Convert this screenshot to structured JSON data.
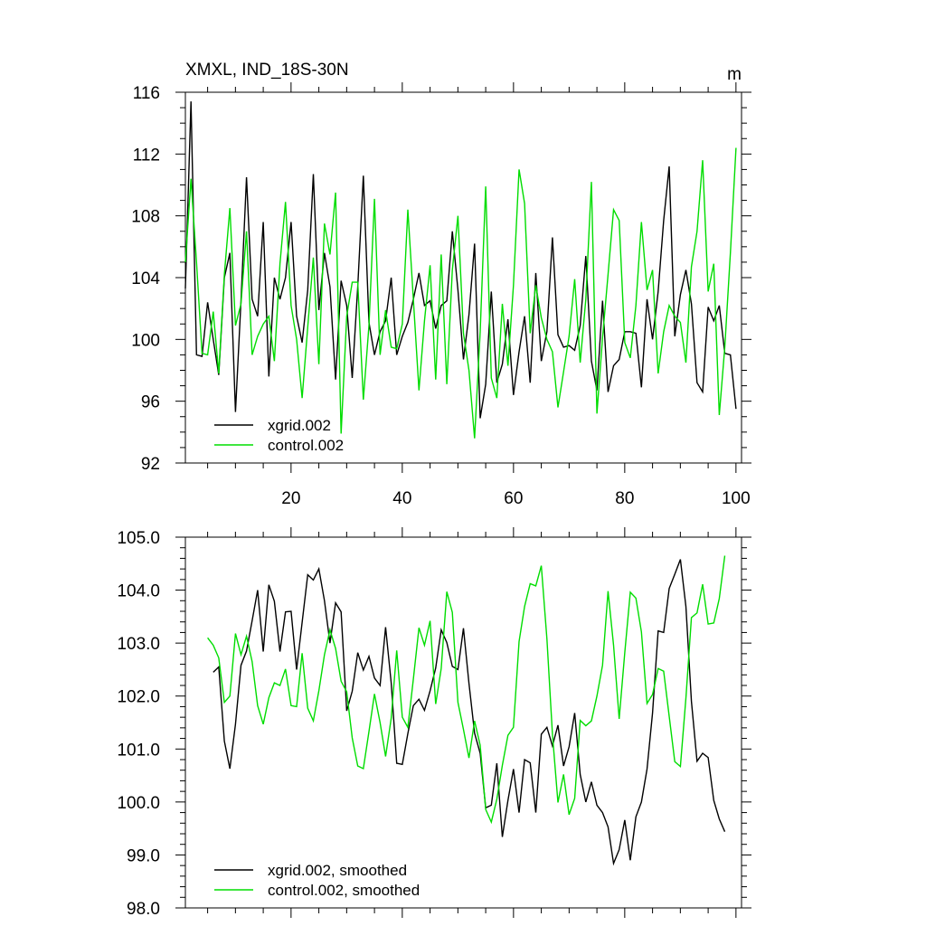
{
  "chart_data": [
    {
      "type": "line",
      "title": "XMXL, IND_18S-30N",
      "units": "m",
      "xlabel": "",
      "ylabel": "",
      "xlim": [
        1,
        101
      ],
      "ylim": [
        92,
        116
      ],
      "xticks": [
        20,
        40,
        60,
        80,
        100
      ],
      "yticks": [
        92,
        96,
        100,
        104,
        108,
        112,
        116
      ],
      "legend_position": "bottom-left",
      "series": [
        {
          "name": "xgrid.002",
          "color": "#000000",
          "x_start": 1,
          "values": [
            103.3,
            115.4,
            99.0,
            98.9,
            102.4,
            100.0,
            97.7,
            104.0,
            105.6,
            95.3,
            102.5,
            110.5,
            102.6,
            101.5,
            107.6,
            97.6,
            104.0,
            102.6,
            104.0,
            107.6,
            101.5,
            99.8,
            103.2,
            110.7,
            101.9,
            105.6,
            103.4,
            97.4,
            103.8,
            102.2,
            97.5,
            103.4,
            110.6,
            101.1,
            99.0,
            100.5,
            101.2,
            104.0,
            99.0,
            100.2,
            101.1,
            102.6,
            104.3,
            102.2,
            102.5,
            100.7,
            102.2,
            102.5,
            107.0,
            103.2,
            98.7,
            101.6,
            106.2,
            94.9,
            97.1,
            103.1,
            97.2,
            98.4,
            101.3,
            96.4,
            99.2,
            101.5,
            97.2,
            104.3,
            98.6,
            100.5,
            106.6,
            100.3,
            99.5,
            99.6,
            99.3,
            100.9,
            105.4,
            98.6,
            96.7,
            102.5,
            96.6,
            98.3,
            98.7,
            100.5,
            100.5,
            100.4,
            96.9,
            102.6,
            100.0,
            103.1,
            107.7,
            111.2,
            100.2,
            102.9,
            104.5,
            102.3,
            97.2,
            96.6,
            102.1,
            101.2,
            102.2,
            99.1,
            99.0,
            95.5
          ]
        },
        {
          "name": "control.002",
          "color": "#00dd00",
          "x_start": 1,
          "values": [
            105.0,
            110.4,
            105.0,
            99.1,
            99.0,
            101.8,
            97.8,
            104.2,
            108.5,
            100.9,
            102.3,
            107.0,
            99.0,
            100.2,
            101.0,
            101.5,
            98.6,
            104.9,
            108.9,
            102.2,
            100.0,
            96.2,
            100.8,
            105.3,
            98.4,
            107.5,
            105.5,
            109.5,
            93.9,
            101.5,
            103.7,
            103.7,
            96.1,
            100.9,
            109.1,
            99.0,
            101.9,
            99.5,
            99.4,
            101.0,
            108.4,
            102.6,
            96.7,
            101.2,
            104.8,
            97.4,
            105.5,
            97.1,
            104.5,
            108.0,
            100.4,
            98.0,
            93.6,
            100.5,
            109.9,
            97.5,
            96.2,
            102.3,
            98.3,
            103.5,
            111.0,
            108.8,
            100.4,
            103.5,
            101.4,
            100.0,
            99.2,
            95.6,
            97.9,
            100.2,
            103.9,
            98.5,
            102.6,
            110.2,
            95.2,
            100.1,
            104.2,
            108.4,
            107.7,
            99.8,
            98.8,
            102.2,
            107.6,
            103.2,
            104.5,
            97.8,
            100.5,
            102.2,
            101.5,
            101.1,
            98.5,
            104.7,
            107.0,
            111.6,
            103.1,
            104.9,
            95.1,
            99.5,
            105.6,
            112.4
          ]
        }
      ]
    },
    {
      "type": "line",
      "title": "",
      "xlabel": "",
      "ylabel": "",
      "xlim": [
        1,
        101
      ],
      "ylim": [
        98.0,
        105.0
      ],
      "xticks": [
        20,
        40,
        60,
        80,
        100
      ],
      "yticks": [
        "98.0",
        "99.0",
        "100.0",
        "101.0",
        "102.0",
        "103.0",
        "104.0",
        "105.0"
      ],
      "legend_position": "bottom-left",
      "series": [
        {
          "name": "xgrid.002, smoothed",
          "color": "#000000",
          "x_start": 6,
          "values": [
            102.45,
            102.55,
            101.15,
            100.63,
            101.47,
            102.58,
            102.85,
            103.42,
            104.0,
            102.84,
            104.1,
            103.79,
            102.84,
            103.59,
            103.6,
            102.5,
            103.39,
            104.29,
            104.19,
            104.4,
            103.8,
            103.0,
            103.76,
            103.59,
            101.72,
            102.09,
            102.82,
            102.49,
            102.75,
            102.34,
            102.2,
            103.3,
            102.25,
            100.73,
            100.71,
            101.29,
            101.82,
            101.94,
            101.73,
            102.1,
            102.53,
            103.25,
            103.01,
            102.56,
            102.5,
            103.28,
            102.24,
            101.3,
            100.92,
            99.89,
            99.94,
            100.73,
            99.34,
            100.03,
            100.62,
            99.8,
            100.8,
            100.74,
            99.8,
            101.28,
            101.41,
            101.06,
            101.45,
            100.68,
            101.04,
            101.68,
            100.52,
            100.0,
            100.38,
            99.94,
            99.8,
            99.53,
            98.84,
            99.1,
            99.66,
            98.9,
            99.72,
            100.0,
            100.62,
            101.68,
            103.23,
            103.2,
            104.03,
            104.3,
            104.58,
            103.69,
            101.9,
            100.77,
            100.92,
            100.84,
            100.03,
            99.68,
            99.44
          ]
        },
        {
          "name": "control.002, smoothed",
          "color": "#00dd00",
          "x_start": 5,
          "values": [
            103.1,
            102.96,
            102.72,
            101.88,
            102.0,
            103.18,
            102.78,
            103.13,
            102.65,
            101.82,
            101.47,
            101.97,
            102.25,
            102.2,
            102.51,
            101.82,
            101.8,
            102.81,
            101.77,
            101.53,
            102.1,
            102.78,
            103.25,
            102.9,
            102.28,
            102.08,
            101.21,
            100.68,
            100.63,
            101.33,
            102.04,
            101.5,
            100.86,
            101.58,
            102.86,
            101.6,
            101.41,
            102.32,
            103.29,
            102.96,
            103.42,
            101.85,
            102.52,
            103.97,
            103.58,
            101.88,
            101.37,
            100.83,
            101.53,
            101.07,
            99.86,
            99.62,
            100.05,
            100.69,
            101.26,
            101.41,
            103.03,
            103.69,
            104.12,
            104.08,
            104.46,
            103.08,
            101.28,
            99.99,
            100.52,
            99.76,
            100.07,
            101.54,
            101.44,
            101.53,
            102.0,
            102.58,
            103.98,
            102.96,
            101.57,
            102.82,
            103.96,
            103.85,
            103.21,
            101.86,
            102.03,
            102.52,
            102.47,
            101.62,
            100.76,
            100.67,
            101.96,
            103.48,
            103.57,
            104.11,
            103.36,
            103.38,
            103.84,
            104.65
          ]
        }
      ]
    }
  ]
}
